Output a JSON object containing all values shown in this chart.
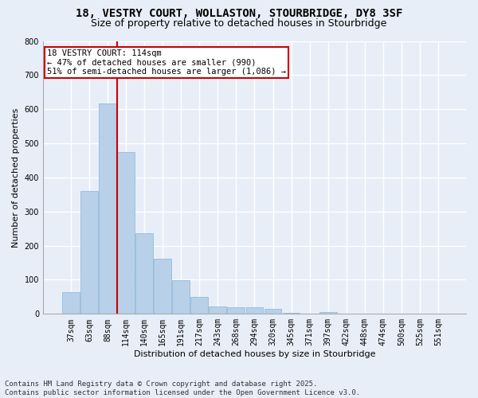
{
  "title_line1": "18, VESTRY COURT, WOLLASTON, STOURBRIDGE, DY8 3SF",
  "title_line2": "Size of property relative to detached houses in Stourbridge",
  "xlabel": "Distribution of detached houses by size in Stourbridge",
  "ylabel": "Number of detached properties",
  "categories": [
    "37sqm",
    "63sqm",
    "88sqm",
    "114sqm",
    "140sqm",
    "165sqm",
    "191sqm",
    "217sqm",
    "243sqm",
    "268sqm",
    "294sqm",
    "320sqm",
    "345sqm",
    "371sqm",
    "397sqm",
    "422sqm",
    "448sqm",
    "474sqm",
    "500sqm",
    "525sqm",
    "551sqm"
  ],
  "values": [
    63,
    360,
    617,
    475,
    237,
    162,
    98,
    49,
    22,
    19,
    19,
    14,
    2,
    0,
    5,
    0,
    0,
    0,
    0,
    0,
    0
  ],
  "bar_color": "#b8d0e8",
  "bar_edge_color": "#8ab4d4",
  "vline_color": "#cc0000",
  "annotation_text": "18 VESTRY COURT: 114sqm\n← 47% of detached houses are smaller (990)\n51% of semi-detached houses are larger (1,086) →",
  "annotation_box_color": "#ffffff",
  "annotation_box_edge_color": "#cc0000",
  "ylim": [
    0,
    800
  ],
  "yticks": [
    0,
    100,
    200,
    300,
    400,
    500,
    600,
    700,
    800
  ],
  "background_color": "#e8eef8",
  "grid_color": "#ffffff",
  "footer_line1": "Contains HM Land Registry data © Crown copyright and database right 2025.",
  "footer_line2": "Contains public sector information licensed under the Open Government Licence v3.0.",
  "title_fontsize": 10,
  "subtitle_fontsize": 9,
  "axis_label_fontsize": 8,
  "tick_fontsize": 7,
  "annotation_fontsize": 7.5,
  "footer_fontsize": 6.5
}
